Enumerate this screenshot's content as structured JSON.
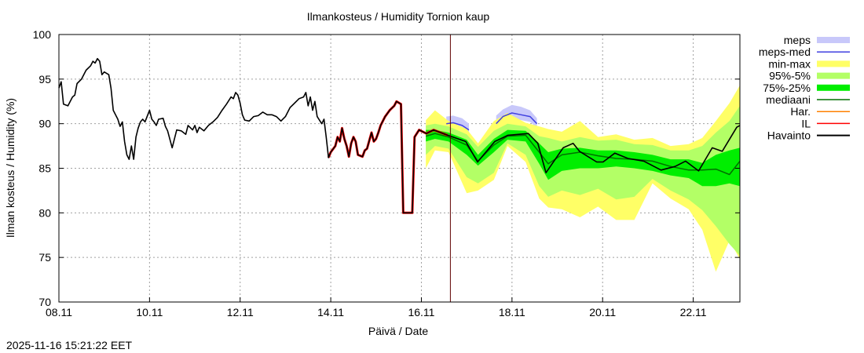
{
  "chart_data": {
    "type": "line",
    "title": "Ilmankosteus / Humidity  Tornion kaup",
    "xlabel": "Päivä / Date",
    "ylabel": "Ilman kosteus / Humidity (%)",
    "timestamp": "2025-11-16 15:21:22 EET",
    "x_unit": "days since 08.11 00:00",
    "xlim": [
      0,
      15.03
    ],
    "ylim": [
      70,
      100
    ],
    "grid": true,
    "legend_position": "right",
    "now_marker_day": 8.64,
    "x_ticks": [
      {
        "day": 0,
        "label": "08.11"
      },
      {
        "day": 2,
        "label": "10.11"
      },
      {
        "day": 4,
        "label": "12.11"
      },
      {
        "day": 6,
        "label": "14.11"
      },
      {
        "day": 8,
        "label": "16.11"
      },
      {
        "day": 10,
        "label": "18.11"
      },
      {
        "day": 12,
        "label": "20.11"
      },
      {
        "day": 14,
        "label": "22.11"
      }
    ],
    "y_ticks": [
      70,
      75,
      80,
      85,
      90,
      95,
      100
    ],
    "legend": [
      {
        "key": "meps",
        "label": "meps",
        "kind": "band",
        "color": "#c8c8fa"
      },
      {
        "key": "meps_med",
        "label": "meps-med",
        "kind": "line",
        "color": "#4040e0"
      },
      {
        "key": "minmax",
        "label": "min-max",
        "kind": "band",
        "color": "#ffff66"
      },
      {
        "key": "p95_5",
        "label": "95%-5%",
        "kind": "band",
        "color": "#b3ff66"
      },
      {
        "key": "p75_25",
        "label": "75%-25%",
        "kind": "band",
        "color": "#00ee00"
      },
      {
        "key": "median",
        "label": "mediaani",
        "kind": "line",
        "color": "#007000"
      },
      {
        "key": "har",
        "label": "Har.",
        "kind": "line",
        "color": "#ff8000"
      },
      {
        "key": "il",
        "label": "IL",
        "kind": "line",
        "color": "#ff0000"
      },
      {
        "key": "obs",
        "label": "Havainto",
        "kind": "line",
        "color": "#000000"
      }
    ],
    "forecast_x": [
      8.1,
      8.3,
      8.6,
      9.0,
      9.25,
      9.6,
      9.9,
      10.3,
      10.6,
      10.8,
      11.1,
      11.5,
      11.9,
      12.3,
      12.7,
      13.1,
      13.5,
      13.9,
      14.2,
      14.5,
      14.8,
      15.03
    ],
    "min": [
      85.0,
      87.0,
      86.8,
      82.2,
      82.5,
      83.7,
      87.5,
      85.7,
      81.6,
      80.6,
      80.4,
      79.5,
      80.7,
      79.2,
      79.2,
      83.3,
      81.6,
      80.4,
      78.1,
      73.4,
      76.9,
      74.8
    ],
    "max": [
      90.4,
      91.5,
      90.3,
      89.4,
      87.8,
      90.3,
      91.2,
      90.1,
      89.7,
      89.4,
      89.1,
      90.3,
      88.5,
      88.8,
      88.2,
      88.4,
      87.5,
      87.7,
      88.4,
      90.3,
      92.3,
      94.3
    ],
    "p5": [
      86.5,
      87.5,
      87.2,
      84.0,
      83.3,
      84.5,
      87.8,
      86.5,
      83.0,
      81.8,
      82.5,
      82.0,
      82.7,
      81.5,
      81.8,
      83.8,
      82.5,
      81.5,
      80.3,
      78.5,
      76.5,
      75.2
    ],
    "p95": [
      89.8,
      90.0,
      89.7,
      88.8,
      87.4,
      89.2,
      90.0,
      89.7,
      88.6,
      88.4,
      88.0,
      88.5,
      88.1,
      88.2,
      87.7,
      87.6,
      87.0,
      87.0,
      87.5,
      89.0,
      90.3,
      92.0
    ],
    "p25": [
      88.0,
      88.3,
      88.0,
      86.5,
      85.3,
      86.8,
      88.2,
      88.0,
      85.5,
      83.7,
      84.7,
      85.0,
      85.0,
      85.2,
      85.0,
      84.7,
      84.2,
      83.9,
      83.0,
      83.0,
      83.3,
      83.0
    ],
    "p75": [
      89.3,
      89.3,
      89.0,
      88.2,
      86.5,
      88.3,
      89.3,
      89.2,
      87.8,
      86.8,
      87.2,
      87.3,
      87.0,
      87.0,
      86.8,
      86.5,
      86.0,
      86.0,
      85.6,
      86.5,
      87.0,
      87.3
    ],
    "median": [
      88.6,
      88.9,
      88.5,
      87.6,
      85.8,
      87.6,
      88.6,
      88.7,
      86.8,
      85.5,
      86.5,
      86.8,
      86.4,
      86.1,
      86.0,
      85.8,
      85.2,
      84.8,
      84.8,
      84.9,
      84.3,
      85.8
    ],
    "meps_segments": [
      {
        "x": [
          8.55,
          8.7,
          8.9,
          9.05
        ],
        "med": [
          90.0,
          90.1,
          89.8,
          89.3
        ],
        "lo": [
          89.6,
          89.7,
          89.4,
          88.9
        ],
        "hi": [
          90.8,
          90.9,
          90.6,
          90.0
        ]
      },
      {
        "x": [
          9.65,
          9.8,
          10.0,
          10.2,
          10.4,
          10.55
        ],
        "med": [
          90.0,
          90.8,
          91.2,
          91.0,
          90.8,
          90.0
        ],
        "lo": [
          89.5,
          90.2,
          90.6,
          90.4,
          90.2,
          89.5
        ],
        "hi": [
          90.9,
          91.6,
          92.1,
          91.9,
          91.5,
          90.6
        ]
      }
    ],
    "obs_x": [
      0,
      0.05,
      0.1,
      0.2,
      0.3,
      0.35,
      0.4,
      0.5,
      0.6,
      0.7,
      0.75,
      0.8,
      0.85,
      0.9,
      0.95,
      1.0,
      1.1,
      1.15,
      1.2,
      1.3,
      1.35,
      1.4,
      1.45,
      1.5,
      1.55,
      1.6,
      1.65,
      1.7,
      1.75,
      1.8,
      1.85,
      1.9,
      2.0,
      2.05,
      2.1,
      2.15,
      2.2,
      2.3,
      2.35,
      2.4,
      2.5,
      2.6,
      2.7,
      2.8,
      2.85,
      2.95,
      3.0,
      3.05,
      3.1,
      3.2,
      3.3,
      3.4,
      3.5,
      3.6,
      3.7,
      3.8,
      3.85,
      3.9,
      3.95,
      4.0,
      4.05,
      4.1,
      4.2,
      4.3,
      4.4,
      4.5,
      4.6,
      4.7,
      4.8,
      4.9,
      5.0,
      5.1,
      5.2,
      5.3,
      5.4,
      5.45,
      5.5,
      5.55,
      5.6,
      5.65,
      5.7,
      5.8,
      5.85,
      5.9,
      5.95,
      6.0,
      6.1,
      6.15,
      6.2,
      6.25,
      6.3,
      6.35,
      6.4,
      6.45,
      6.5,
      6.55,
      6.6,
      6.7,
      6.75,
      6.8,
      6.9,
      6.95,
      7.0,
      7.05,
      7.1,
      7.2,
      7.3,
      7.4,
      7.45,
      7.55,
      7.6,
      7.7,
      7.8,
      7.85,
      7.95,
      8.11,
      8.27,
      8.58,
      8.98,
      9.24,
      9.62,
      9.91,
      10.36,
      10.57,
      10.75,
      11.13,
      11.35,
      11.49,
      11.87,
      12.01,
      12.27,
      12.56,
      12.91,
      13.29,
      13.6,
      13.83,
      14.12,
      14.42,
      14.64,
      14.96,
      15.03
    ],
    "obs_y": [
      94.0,
      94.7,
      92.2,
      92.0,
      93.0,
      93.2,
      94.5,
      95.0,
      96.0,
      96.5,
      97.0,
      96.8,
      97.3,
      97.0,
      95.5,
      95.8,
      95.5,
      94.0,
      91.5,
      90.5,
      89.7,
      90.2,
      88.0,
      86.5,
      86.0,
      87.5,
      86.0,
      88.5,
      89.5,
      90.2,
      90.5,
      90.2,
      91.5,
      90.5,
      90.2,
      89.8,
      90.5,
      90.6,
      89.7,
      89.2,
      87.3,
      89.3,
      89.2,
      88.8,
      89.8,
      89.3,
      89.8,
      89.0,
      89.6,
      89.2,
      89.8,
      90.2,
      90.7,
      91.5,
      92.2,
      93.0,
      92.8,
      93.5,
      93.2,
      92.3,
      91.0,
      90.4,
      90.3,
      90.8,
      90.9,
      91.3,
      91.0,
      91.0,
      90.8,
      90.3,
      90.8,
      91.8,
      92.3,
      92.8,
      93.0,
      93.5,
      92.0,
      93.0,
      91.5,
      92.5,
      90.8,
      90.0,
      90.5,
      88.5,
      86.2,
      86.8,
      87.5,
      88.5,
      88.0,
      89.5,
      88.3,
      87.5,
      86.3,
      87.8,
      88.5,
      88.0,
      86.5,
      86.3,
      87.0,
      87.2,
      89.0,
      88.0,
      88.3,
      89.0,
      89.8,
      90.8,
      91.5,
      92.0,
      92.5,
      92.2,
      80.0,
      80.0,
      80.0,
      88.5,
      89.3,
      88.9,
      89.3,
      88.7,
      88.0,
      85.7,
      88.0,
      88.7,
      88.9,
      87.8,
      84.5,
      87.3,
      87.8,
      86.9,
      85.7,
      85.7,
      86.7,
      86.1,
      85.8,
      84.8,
      85.2,
      85.8,
      84.7,
      87.3,
      86.9,
      89.6,
      89.8
    ],
    "il_range_days": [
      5.95,
      8.6
    ]
  }
}
